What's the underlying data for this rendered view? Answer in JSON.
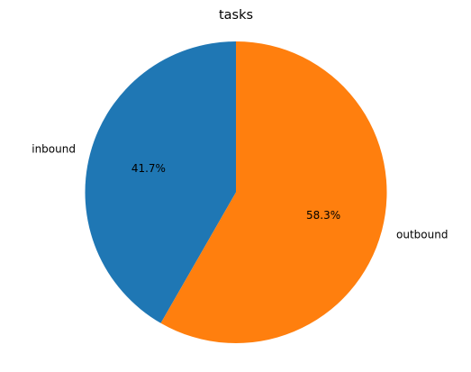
{
  "chart_data": {
    "type": "pie",
    "title": "tasks",
    "labels": [
      "inbound",
      "outbound"
    ],
    "values": [
      41.7,
      58.3
    ],
    "percent_labels": [
      "41.7%",
      "58.3%"
    ],
    "colors": [
      "#1f77b4",
      "#ff7f0e"
    ],
    "start_angle_deg": 90,
    "direction": "counterclockwise"
  }
}
